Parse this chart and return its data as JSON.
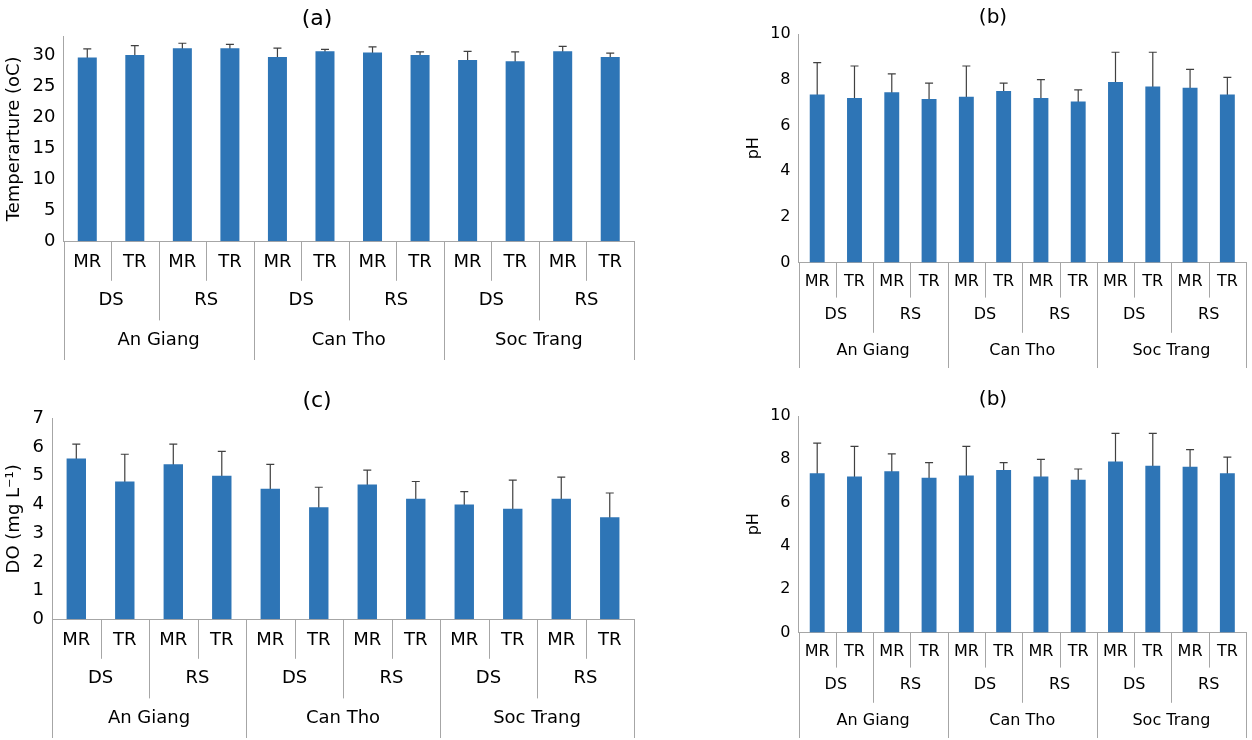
{
  "chart_data": [
    {
      "type": "bar",
      "title": "(a)",
      "ylabel": "Temperarture (oC)",
      "categories": [
        "MR",
        "TR",
        "MR",
        "TR",
        "MR",
        "TR",
        "MR",
        "TR",
        "MR",
        "TR",
        "MR",
        "TR"
      ],
      "color": "#2e75b6",
      "values": [
        29.6,
        30,
        31.1,
        31.1,
        29.7,
        30.6,
        30.4,
        30,
        29.2,
        29,
        30.6,
        29.7
      ],
      "errors": [
        1.4,
        1.5,
        0.8,
        0.6,
        1.4,
        0.3,
        0.9,
        0.5,
        1.4,
        1.5,
        0.8,
        0.6
      ],
      "ylim": [
        0,
        33
      ],
      "yticks": [
        0,
        5,
        10,
        15,
        20,
        25,
        30
      ],
      "grid": false,
      "legend": false,
      "annotations": [
        "DS",
        "RS",
        "DS",
        "RS",
        "DS",
        "RS",
        "An Giang",
        "Can Tho",
        "Soc Trang"
      ]
    },
    {
      "type": "bar",
      "title": "(b)",
      "ylabel": "pH",
      "categories": [
        "MR",
        "TR",
        "MR",
        "TR",
        "MR",
        "TR",
        "MR",
        "TR",
        "MR",
        "TR",
        "MR",
        "TR"
      ],
      "color": "#2e75b6",
      "values": [
        7.35,
        7.2,
        7.45,
        7.15,
        7.25,
        7.5,
        7.2,
        7.05,
        7.9,
        7.7,
        7.65,
        7.35
      ],
      "errors": [
        1.4,
        1.4,
        0.8,
        0.7,
        1.35,
        0.35,
        0.8,
        0.5,
        1.3,
        1.5,
        0.8,
        0.75
      ],
      "ylim": [
        0,
        10
      ],
      "yticks": [
        0,
        2,
        4,
        6,
        8,
        10
      ],
      "grid": false,
      "legend": false,
      "annotations": [
        "DS",
        "RS",
        "DS",
        "RS",
        "DS",
        "RS",
        "An Giang",
        "Can Tho",
        "Soc Trang"
      ]
    },
    {
      "type": "bar",
      "title": "(c)",
      "ylabel": "DO (mg L⁻¹)",
      "categories": [
        "MR",
        "TR",
        "MR",
        "TR",
        "MR",
        "TR",
        "MR",
        "TR",
        "MR",
        "TR",
        "MR",
        "TR"
      ],
      "color": "#2e75b6",
      "values": [
        5.6,
        4.8,
        5.4,
        5.0,
        4.55,
        3.9,
        4.7,
        4.2,
        4.0,
        3.85,
        4.2,
        3.55
      ],
      "errors": [
        0.5,
        0.95,
        0.7,
        0.85,
        0.85,
        0.7,
        0.5,
        0.6,
        0.45,
        1.0,
        0.75,
        0.85
      ],
      "ylim": [
        0,
        7
      ],
      "yticks": [
        0,
        1,
        2,
        3,
        4,
        5,
        6,
        7
      ],
      "grid": false,
      "legend": false,
      "annotations": [
        "DS",
        "RS",
        "DS",
        "RS",
        "DS",
        "RS",
        "An Giang",
        "Can Tho",
        "Soc Trang"
      ]
    },
    {
      "type": "bar",
      "title": "(b)",
      "ylabel": "pH",
      "categories": [
        "MR",
        "TR",
        "MR",
        "TR",
        "MR",
        "TR",
        "MR",
        "TR",
        "MR",
        "TR",
        "MR",
        "TR"
      ],
      "color": "#2e75b6",
      "values": [
        7.35,
        7.2,
        7.45,
        7.15,
        7.25,
        7.5,
        7.2,
        7.05,
        7.9,
        7.7,
        7.65,
        7.35
      ],
      "errors": [
        1.4,
        1.4,
        0.8,
        0.7,
        1.35,
        0.35,
        0.8,
        0.5,
        1.3,
        1.5,
        0.8,
        0.75
      ],
      "ylim": [
        0,
        10
      ],
      "yticks": [
        0,
        2,
        4,
        6,
        8,
        10
      ],
      "grid": false,
      "legend": false,
      "annotations": [
        "DS",
        "RS",
        "DS",
        "RS",
        "DS",
        "RS",
        "An Giang",
        "Can Tho",
        "Soc Trang"
      ]
    }
  ]
}
